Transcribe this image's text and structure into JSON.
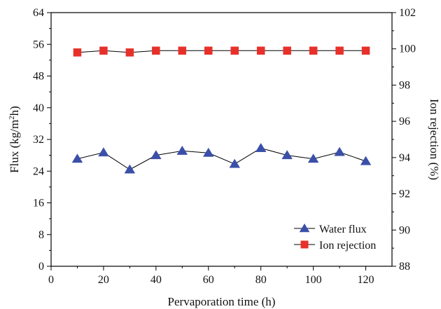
{
  "chart_data": {
    "type": "line",
    "xlabel": "Pervaporation time (h)",
    "ylabel_left": "Flux (kg/m²h)",
    "ylabel_left_parts": {
      "before": "Flux (kg/m",
      "sup": "2",
      "after": "h)"
    },
    "ylabel_right": "Ion rejection (%)",
    "xlim": [
      0,
      130
    ],
    "ylim_left": [
      0,
      64
    ],
    "ylim_right": [
      88,
      102
    ],
    "xticks": [
      0,
      20,
      40,
      60,
      80,
      100,
      120
    ],
    "yticks_left": [
      0,
      8,
      16,
      24,
      32,
      40,
      48,
      56,
      64
    ],
    "yticks_right": [
      88,
      90,
      92,
      94,
      96,
      98,
      100,
      102
    ],
    "grid": false,
    "legend_position": "bottom-right",
    "series": [
      {
        "name": "Water flux",
        "axis": "left",
        "marker": "triangle",
        "color": "#3a4fa8",
        "x": [
          10,
          20,
          30,
          40,
          50,
          60,
          70,
          80,
          90,
          100,
          110,
          120
        ],
        "values": [
          27.1,
          28.7,
          24.4,
          28.0,
          29.1,
          28.6,
          25.8,
          29.8,
          28.0,
          27.1,
          28.8,
          26.5
        ]
      },
      {
        "name": "Ion rejection",
        "axis": "right",
        "marker": "square",
        "color": "#e8302a",
        "x": [
          10,
          20,
          30,
          40,
          50,
          60,
          70,
          80,
          90,
          100,
          110,
          120
        ],
        "values": [
          99.8,
          99.9,
          99.8,
          99.9,
          99.9,
          99.9,
          99.9,
          99.9,
          99.9,
          99.9,
          99.9,
          99.9
        ]
      }
    ]
  }
}
